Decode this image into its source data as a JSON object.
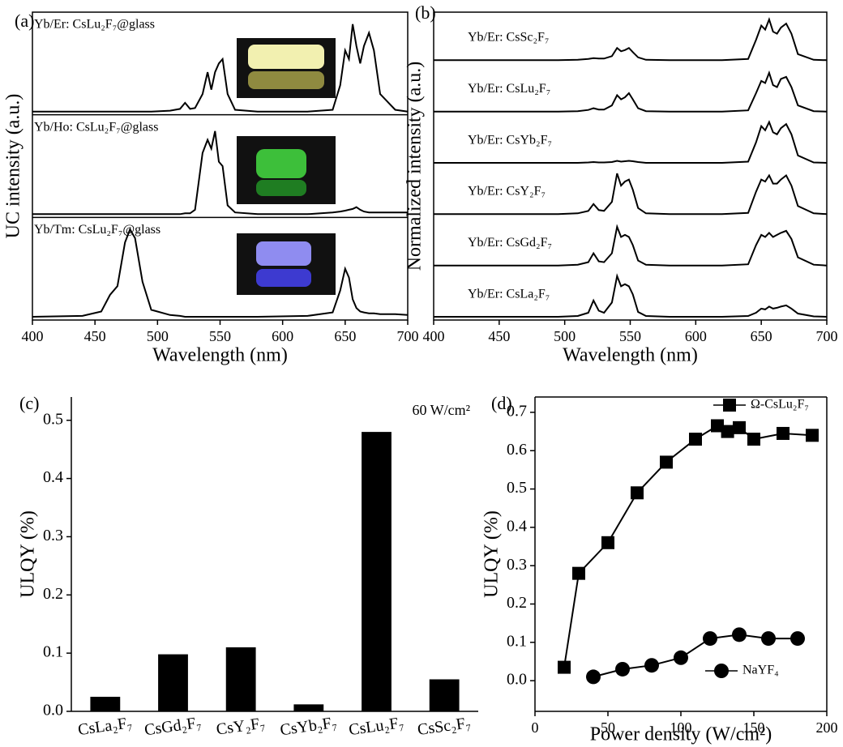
{
  "chart_data": [
    {
      "type": "line",
      "label": "(a)",
      "xlabel": "Wavelength (nm)",
      "ylabel": "UC intensity (a.u.)",
      "x": [
        400,
        440,
        455,
        462,
        468,
        474,
        478,
        482,
        488,
        495,
        510,
        518,
        522,
        526,
        530,
        536,
        540,
        543,
        546,
        549,
        552,
        556,
        562,
        580,
        620,
        640,
        646,
        650,
        653,
        656,
        659,
        662,
        665,
        669,
        673,
        678,
        690,
        700
      ],
      "xlim": [
        400,
        700
      ],
      "xticks": [
        400,
        450,
        500,
        550,
        600,
        650,
        700
      ],
      "ylim": [
        0,
        1.1
      ],
      "separators": true,
      "series": [
        {
          "name": "Yb/Er: CsLu₂F₇@glass",
          "color": "#000000",
          "values": [
            0,
            0,
            0,
            0,
            0,
            0,
            0,
            0,
            0,
            0,
            0.01,
            0.03,
            0.1,
            0.03,
            0.04,
            0.2,
            0.45,
            0.25,
            0.45,
            0.55,
            0.6,
            0.2,
            0.02,
            0,
            0,
            0.02,
            0.3,
            0.7,
            0.6,
            1.0,
            0.75,
            0.55,
            0.75,
            0.9,
            0.7,
            0.2,
            0.02,
            0
          ]
        },
        {
          "name": "Yb/Ho: CsLu₂F₇@glass",
          "color": "#000000",
          "values": [
            0,
            0,
            0,
            0,
            0,
            0,
            0,
            0,
            0,
            0,
            0,
            0,
            0.01,
            0.01,
            0.05,
            0.7,
            0.85,
            0.75,
            0.95,
            0.6,
            0.55,
            0.1,
            0.02,
            0,
            0,
            0.02,
            0.03,
            0.04,
            0.05,
            0.06,
            0.08,
            0.05,
            0.03,
            0.02,
            0.02,
            0.02,
            0.02,
            0.02
          ]
        },
        {
          "name": "Yb/Tm: CsLu₂F₇@glass",
          "color": "#000000",
          "values": [
            0,
            0.01,
            0.06,
            0.25,
            0.35,
            0.85,
            1.0,
            0.9,
            0.4,
            0.08,
            0.02,
            0.01,
            0,
            0,
            0,
            0,
            0,
            0,
            0,
            0,
            0,
            0,
            0,
            0,
            0.01,
            0.05,
            0.3,
            0.55,
            0.45,
            0.2,
            0.1,
            0.06,
            0.05,
            0.04,
            0.04,
            0.03,
            0.03,
            0.02
          ]
        }
      ]
    },
    {
      "type": "line",
      "label": "(b)",
      "xlabel": "Wavelength (nm)",
      "ylabel": "Normalized intensity (a.u.)",
      "x": [
        400,
        440,
        455,
        462,
        468,
        474,
        478,
        482,
        488,
        495,
        510,
        518,
        522,
        526,
        530,
        536,
        540,
        543,
        546,
        549,
        552,
        556,
        562,
        580,
        620,
        640,
        646,
        650,
        653,
        656,
        659,
        662,
        665,
        669,
        673,
        678,
        690,
        700
      ],
      "xlim": [
        400,
        700
      ],
      "xticks": [
        400,
        450,
        500,
        550,
        600,
        650,
        700
      ],
      "ylim": [
        0,
        1.1
      ],
      "separators": false,
      "series": [
        {
          "name": "Yb/Er: CsSc₂F₇",
          "color": "#000000",
          "values": [
            0,
            0,
            0,
            0,
            0,
            0,
            0,
            0,
            0,
            0,
            0.01,
            0.03,
            0.05,
            0.04,
            0.04,
            0.1,
            0.3,
            0.22,
            0.25,
            0.3,
            0.2,
            0.07,
            0.01,
            0,
            0,
            0.03,
            0.5,
            0.85,
            0.75,
            1.0,
            0.7,
            0.65,
            0.8,
            0.9,
            0.65,
            0.15,
            0.01,
            0
          ]
        },
        {
          "name": "Yb/Er: CsLu₂F₇",
          "color": "#000000",
          "values": [
            0,
            0,
            0,
            0,
            0,
            0,
            0,
            0,
            0,
            0,
            0.01,
            0.04,
            0.08,
            0.05,
            0.05,
            0.15,
            0.4,
            0.3,
            0.35,
            0.45,
            0.3,
            0.08,
            0.01,
            0,
            0,
            0.03,
            0.45,
            0.75,
            0.7,
            0.95,
            0.65,
            0.6,
            0.8,
            0.85,
            0.6,
            0.15,
            0.01,
            0
          ]
        },
        {
          "name": "Yb/Er: CsYb₂F₇",
          "color": "#000000",
          "values": [
            0,
            0,
            0,
            0,
            0,
            0,
            0,
            0,
            0,
            0,
            0,
            0.01,
            0.02,
            0.01,
            0.01,
            0.02,
            0.05,
            0.03,
            0.04,
            0.05,
            0.04,
            0.02,
            0,
            0,
            0,
            0.03,
            0.5,
            0.9,
            0.8,
            1.0,
            0.75,
            0.7,
            0.85,
            0.95,
            0.7,
            0.18,
            0.01,
            0
          ]
        },
        {
          "name": "Yb/Er: CsY₂F₇",
          "color": "#000000",
          "values": [
            0,
            0,
            0,
            0,
            0,
            0,
            0,
            0,
            0,
            0,
            0.02,
            0.08,
            0.25,
            0.1,
            0.08,
            0.3,
            1.0,
            0.7,
            0.8,
            0.85,
            0.6,
            0.15,
            0.02,
            0,
            0,
            0.03,
            0.55,
            0.85,
            0.8,
            0.95,
            0.75,
            0.75,
            0.85,
            0.95,
            0.7,
            0.2,
            0.02,
            0
          ]
        },
        {
          "name": "Yb/Er: CsGd₂F₇",
          "color": "#000000",
          "values": [
            0,
            0,
            0,
            0,
            0,
            0,
            0,
            0,
            0,
            0,
            0.02,
            0.08,
            0.3,
            0.1,
            0.08,
            0.3,
            0.95,
            0.7,
            0.75,
            0.7,
            0.5,
            0.12,
            0.02,
            0,
            0,
            0.03,
            0.5,
            0.75,
            0.7,
            0.8,
            0.7,
            0.75,
            0.8,
            0.85,
            0.65,
            0.2,
            0.02,
            0
          ]
        },
        {
          "name": "Yb/Er: CsLa₂F₇",
          "color": "#000000",
          "values": [
            0,
            0,
            0,
            0,
            0,
            0,
            0,
            0,
            0,
            0,
            0.02,
            0.1,
            0.4,
            0.15,
            0.1,
            0.35,
            1.0,
            0.75,
            0.8,
            0.75,
            0.55,
            0.12,
            0.02,
            0,
            0,
            0.02,
            0.1,
            0.2,
            0.18,
            0.25,
            0.2,
            0.22,
            0.25,
            0.28,
            0.2,
            0.08,
            0.01,
            0
          ]
        }
      ]
    },
    {
      "type": "bar",
      "label": "(c)",
      "ylabel": "ULQY (%)",
      "annotation": "60 W/cm²",
      "categories": [
        "CsLa₂F₇",
        "CsGd₂F₇",
        "CsY₂F₇",
        "CsYb₂F₇",
        "CsLu₂F₇",
        "CsSc₂F₇"
      ],
      "values": [
        0.025,
        0.098,
        0.11,
        0.012,
        0.48,
        0.055
      ],
      "color": "#000000",
      "ylim": [
        0,
        0.54
      ],
      "yticks": [
        {
          "value": 0,
          "label": "0.0"
        },
        0.1,
        0.2,
        0.3,
        0.4,
        0.5
      ]
    },
    {
      "type": "scatter",
      "label": "(d)",
      "xlabel": "Power density (W/cm²)",
      "ylabel": "ULQY (%)",
      "xlim": [
        0,
        200
      ],
      "xticks": [
        0,
        50,
        100,
        150,
        200
      ],
      "ylim": [
        -0.08,
        0.74
      ],
      "yticks": [
        {
          "value": 0,
          "label": "0.0"
        },
        0.1,
        0.2,
        0.3,
        0.4,
        0.5,
        0.6,
        0.7
      ],
      "series": [
        {
          "name": "Ω-CsLu₂F₇",
          "color": "#000000",
          "marker": "square",
          "x": [
            20,
            30,
            50,
            70,
            90,
            110,
            125,
            132,
            140,
            150,
            170,
            190
          ],
          "values": [
            0.035,
            0.28,
            0.36,
            0.49,
            0.57,
            0.63,
            0.665,
            0.65,
            0.66,
            0.63,
            0.645,
            0.64
          ]
        },
        {
          "name": "NaYF₄",
          "color": "#000000",
          "marker": "circle",
          "x": [
            40,
            60,
            80,
            100,
            120,
            140,
            160,
            180
          ],
          "values": [
            0.01,
            0.03,
            0.04,
            0.06,
            0.11,
            0.12,
            0.11,
            0.11
          ]
        }
      ]
    }
  ]
}
